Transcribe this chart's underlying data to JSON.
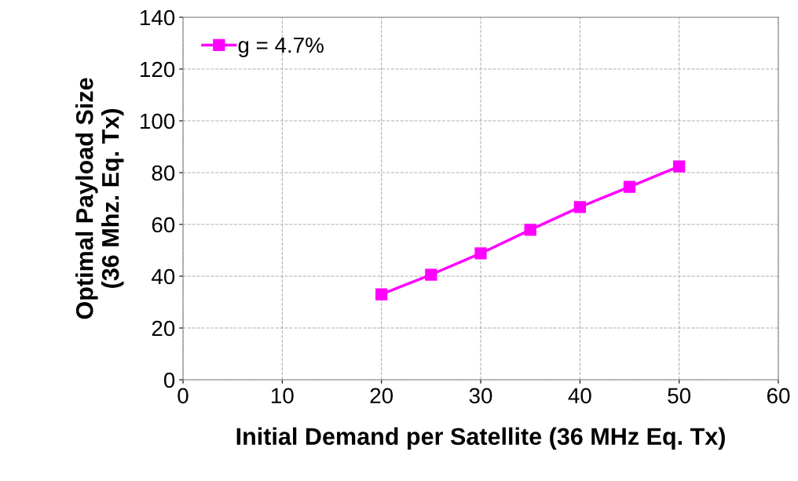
{
  "chart_data": {
    "type": "line",
    "xlabel": "Initial Demand per Satellite (36 MHz Eq. Tx)",
    "ylabel": "Optimal Payload Size\n(36 Mhz. Eq. Tx)",
    "x": [
      20,
      25,
      30,
      35,
      40,
      45,
      50
    ],
    "series": [
      {
        "name": "g = 4.7%",
        "color": "#ff00ff",
        "values": [
          33,
          40.6,
          48.8,
          57.9,
          66.7,
          74.5,
          82.4
        ]
      }
    ],
    "xlim": [
      0,
      60
    ],
    "xticks": [
      0,
      10,
      20,
      30,
      40,
      50,
      60
    ],
    "ylim": [
      0,
      140
    ],
    "yticks": [
      0,
      20,
      40,
      60,
      80,
      100,
      120,
      140
    ],
    "grid": true,
    "legend": "top left",
    "marker": "square",
    "line_style": "solid"
  }
}
